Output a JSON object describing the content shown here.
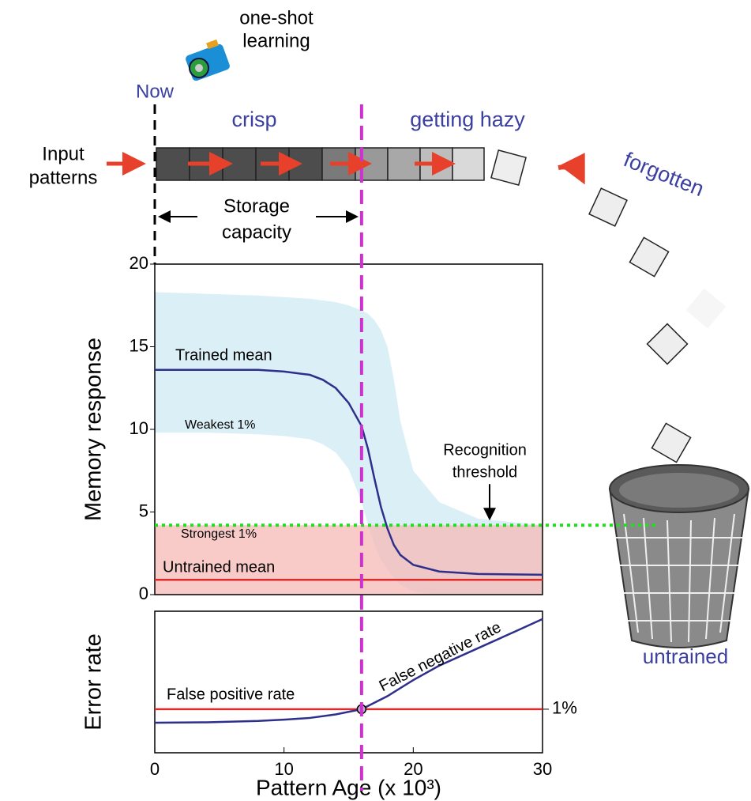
{
  "diagram": {
    "one_shot": [
      "one-shot",
      "learning"
    ],
    "now": "Now",
    "crisp": "crisp",
    "hazy": "getting hazy",
    "input": [
      "Input",
      "patterns"
    ],
    "forgotten": "forgotten",
    "untrained": "untrained"
  },
  "chart_data": [
    {
      "type": "line",
      "ylabel": "Memory response",
      "xlim": [
        0,
        30
      ],
      "ylim": [
        0,
        20
      ],
      "yticks": [
        0,
        5,
        10,
        15,
        20
      ],
      "x": [
        0,
        4,
        8,
        10,
        12,
        13,
        14,
        15,
        16,
        16.5,
        17,
        17.5,
        18,
        18.5,
        19,
        20,
        22,
        25,
        30
      ],
      "series": [
        {
          "name": "Trained mean",
          "color": "#2e2f8c",
          "values": [
            13.6,
            13.6,
            13.6,
            13.5,
            13.3,
            13.0,
            12.5,
            11.6,
            10.2,
            8.8,
            7.0,
            5.3,
            4.0,
            3.0,
            2.4,
            1.8,
            1.4,
            1.25,
            1.2
          ]
        },
        {
          "name": "Untrained mean",
          "color": "#e02a2a",
          "values": [
            0.9,
            0.9,
            0.9,
            0.9,
            0.9,
            0.9,
            0.9,
            0.9,
            0.9,
            0.9,
            0.9,
            0.9,
            0.9,
            0.9,
            0.9,
            0.9,
            0.9,
            0.9,
            0.9
          ]
        }
      ],
      "bands": [
        {
          "name": "Weakest 1%",
          "color": "#cfeaf4",
          "upper": [
            18.3,
            18.2,
            18.1,
            18.0,
            17.9,
            17.8,
            17.7,
            17.5,
            17.2,
            17.0,
            16.6,
            16.0,
            15.0,
            13.0,
            10.5,
            7.5,
            5.6,
            4.6,
            4.2
          ],
          "lower": [
            9.8,
            9.8,
            9.7,
            9.6,
            9.4,
            9.1,
            8.6,
            7.6,
            5.6,
            4.2,
            3.0,
            2.1,
            1.5,
            1.0,
            0.6,
            0.2,
            0,
            0,
            0
          ]
        },
        {
          "name": "Strongest 1%",
          "color": "#f6b9b6",
          "upper": [
            4.2,
            4.2,
            4.2,
            4.2,
            4.2,
            4.2,
            4.2,
            4.2,
            4.2,
            4.2,
            4.2,
            4.2,
            4.2,
            4.2,
            4.2,
            4.2,
            4.2,
            4.2,
            4.2
          ],
          "lower": [
            0,
            0,
            0,
            0,
            0,
            0,
            0,
            0,
            0,
            0,
            0,
            0,
            0,
            0,
            0,
            0,
            0,
            0,
            0
          ]
        }
      ],
      "threshold": {
        "value": 4.2,
        "label": [
          "Recognition",
          "threshold"
        ],
        "color": "#22dd22"
      },
      "capacity": {
        "value": 16,
        "label": [
          "Storage",
          "capacity"
        ],
        "color": "#cc33cc"
      }
    },
    {
      "type": "line",
      "ylabel": "Error rate",
      "xlabel": "Pattern Age (x 10³)",
      "xlim": [
        0,
        30
      ],
      "xticks": [
        0,
        10,
        20,
        30
      ],
      "ylim": [
        0,
        3.25
      ],
      "yticks": [
        {
          "value": 1,
          "label": "1%"
        }
      ],
      "x": [
        0,
        4,
        8,
        10,
        12,
        14,
        16,
        18,
        20,
        22,
        25,
        28,
        30
      ],
      "series": [
        {
          "name": "False positive rate",
          "color": "#e02a2a",
          "values": [
            1,
            1,
            1,
            1,
            1,
            1,
            1,
            1,
            1,
            1,
            1,
            1,
            1
          ]
        },
        {
          "name": "False negative rate",
          "color": "#2e2f8c",
          "values": [
            0.69,
            0.7,
            0.73,
            0.76,
            0.8,
            0.88,
            1.0,
            1.3,
            1.67,
            2.0,
            2.4,
            2.8,
            3.07
          ]
        }
      ]
    }
  ]
}
